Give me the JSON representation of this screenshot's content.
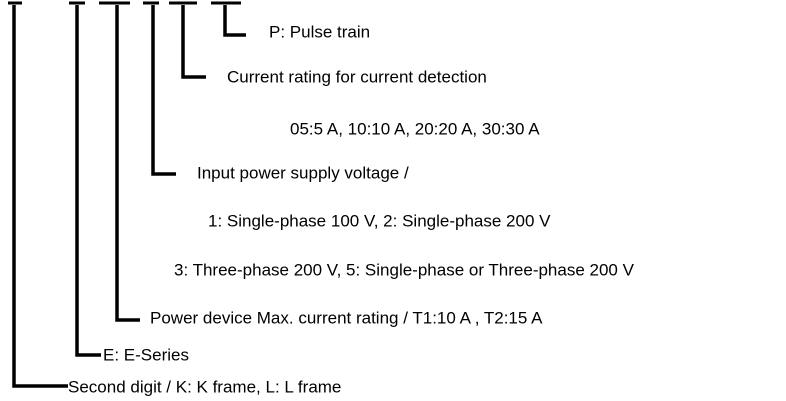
{
  "branches": [
    {
      "label": "P: Pulse train"
    },
    {
      "label": "Current rating for current detection",
      "details": [
        "05:5 A, 10:10 A,   20:20 A, 30:30 A"
      ]
    },
    {
      "label": "Input power supply voltage /",
      "details": [
        "1: Single-phase 100 V, 2: Single-phase 200 V",
        "3: Three-phase 200 V, 5: Single-phase or Three-phase 200 V"
      ]
    },
    {
      "label": "Power device Max. current rating / T1:10 A , T2:15 A"
    },
    {
      "label": "E: E-Series"
    },
    {
      "label": "Second digit / K: K frame, L: L frame"
    }
  ]
}
